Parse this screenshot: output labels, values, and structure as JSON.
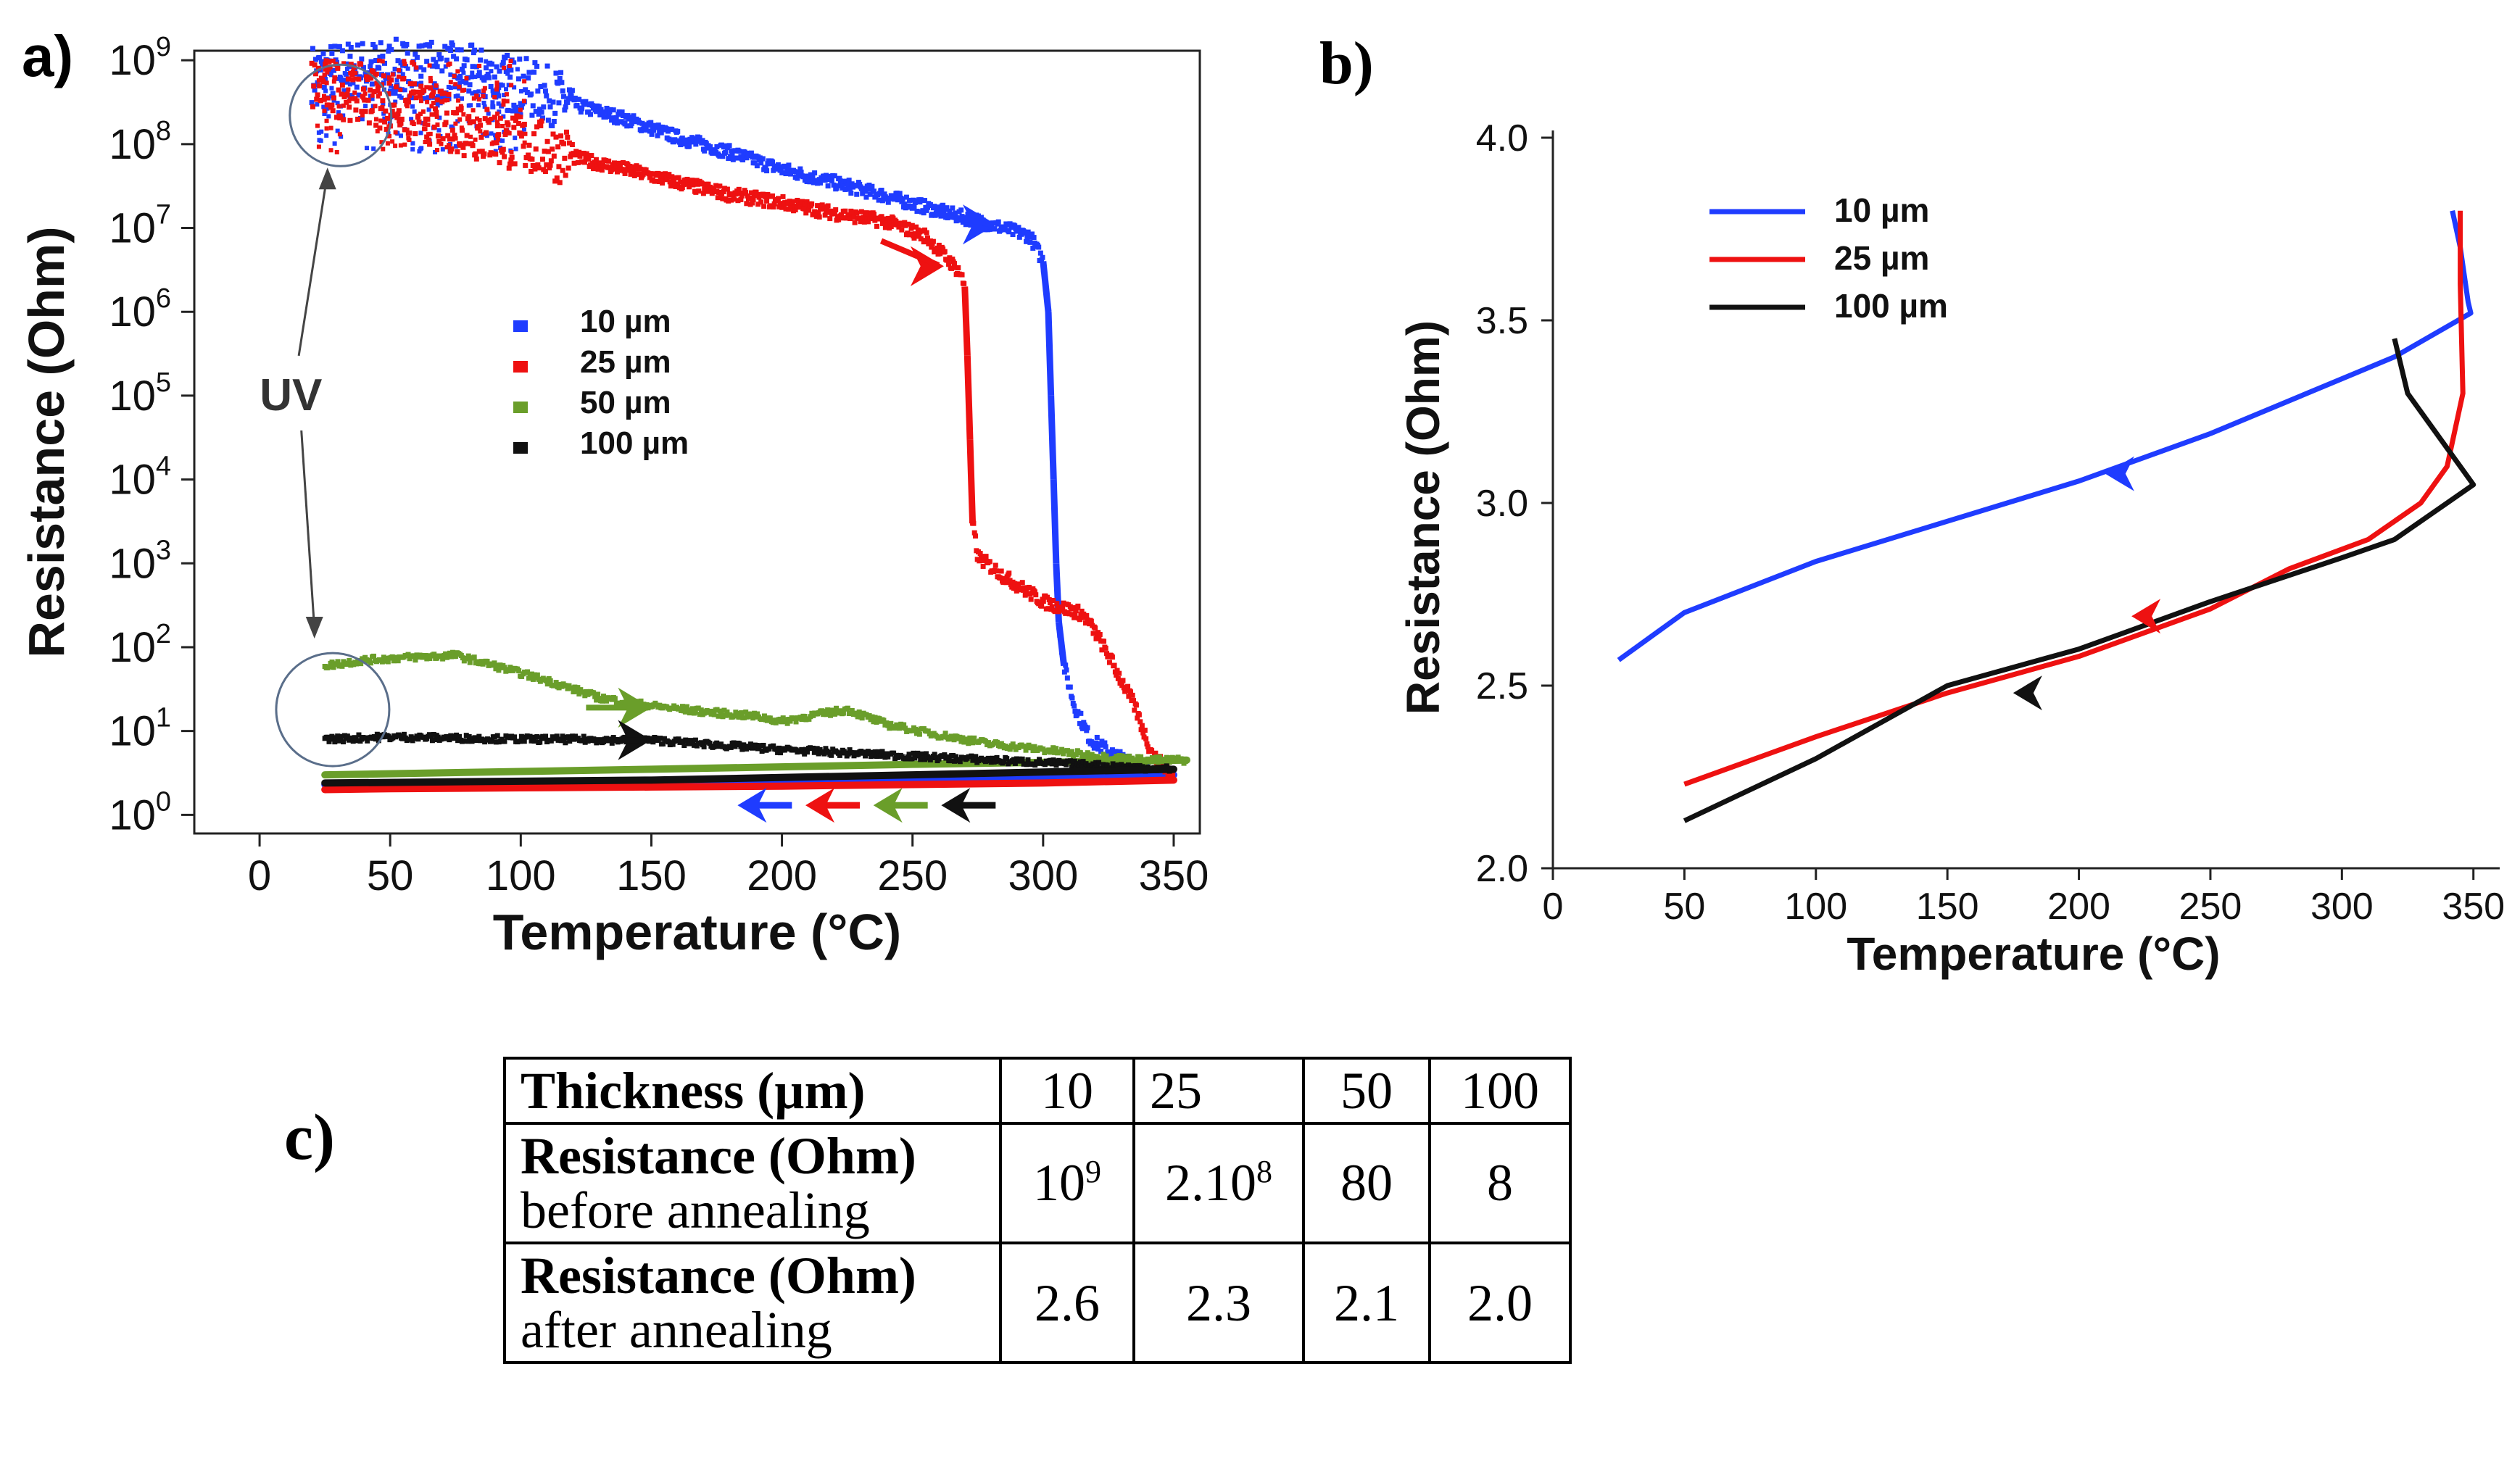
{
  "panel_labels": {
    "a": "a)",
    "b": "b)",
    "c": "c)"
  },
  "colors": {
    "blue": "#1f3cff",
    "red": "#ee1111",
    "green": "#6a9e2a",
    "black": "#111111",
    "circle": "#5a6e8a"
  },
  "chart_data": [
    {
      "panel": "a",
      "type": "scatter",
      "yscale": "log",
      "xlabel": "Temperature (°C)",
      "ylabel": "Resistance (Ohm)",
      "xlim": [
        -25,
        360
      ],
      "ylim": [
        0.6,
        1300000000.0
      ],
      "xticks": [
        0,
        50,
        100,
        150,
        200,
        250,
        300,
        350
      ],
      "yticks": [
        {
          "value": 1,
          "base": "10",
          "exp": "0"
        },
        {
          "value": 10,
          "base": "10",
          "exp": "1"
        },
        {
          "value": 100,
          "base": "10",
          "exp": "2"
        },
        {
          "value": 1000,
          "base": "10",
          "exp": "3"
        },
        {
          "value": 10000,
          "base": "10",
          "exp": "4"
        },
        {
          "value": 100000,
          "base": "10",
          "exp": "5"
        },
        {
          "value": 1000000,
          "base": "10",
          "exp": "6"
        },
        {
          "value": 10000000,
          "base": "10",
          "exp": "7"
        },
        {
          "value": 100000000,
          "base": "10",
          "exp": "8"
        },
        {
          "value": 1000000000,
          "base": "10",
          "exp": "9"
        }
      ],
      "annotation": "UV",
      "legend_position": "center",
      "series": [
        {
          "name": "10 µm",
          "heating": [
            [
              20,
              700000000.0
            ],
            [
              40,
              800000000.0
            ],
            [
              60,
              800000000.0
            ],
            [
              80,
              700000000.0
            ],
            [
              100,
              500000000.0
            ],
            [
              120,
              300000000.0
            ],
            [
              140,
              200000000.0
            ],
            [
              160,
              120000000.0
            ],
            [
              180,
              80000000.0
            ],
            [
              200,
              50000000.0
            ],
            [
              220,
              35000000.0
            ],
            [
              240,
              24000000.0
            ],
            [
              260,
              16000000.0
            ],
            [
              280,
              11000000.0
            ],
            [
              295,
              8000000.0
            ],
            [
              300,
              4000000.0
            ],
            [
              302,
              1000000.0
            ],
            [
              303,
              100000.0
            ],
            [
              304,
              10000.0
            ],
            [
              305,
              1000.0
            ],
            [
              306,
              200
            ],
            [
              308,
              60
            ],
            [
              312,
              20
            ],
            [
              318,
              8
            ],
            [
              328,
              5
            ],
            [
              340,
              3.5
            ],
            [
              350,
              3
            ]
          ],
          "cooling": [
            [
              350,
              3
            ],
            [
              300,
              2.8
            ],
            [
              250,
              2.7
            ],
            [
              200,
              2.6
            ],
            [
              150,
              2.5
            ],
            [
              100,
              2.4
            ],
            [
              50,
              2.35
            ],
            [
              25,
              2.3
            ]
          ]
        },
        {
          "name": "25 µm",
          "heating": [
            [
              20,
              500000000.0
            ],
            [
              40,
              400000000.0
            ],
            [
              60,
              250000000.0
            ],
            [
              80,
              150000000.0
            ],
            [
              100,
              100000000.0
            ],
            [
              120,
              70000000.0
            ],
            [
              140,
              50000000.0
            ],
            [
              160,
              35000000.0
            ],
            [
              180,
              25000000.0
            ],
            [
              200,
              20000000.0
            ],
            [
              220,
              15000000.0
            ],
            [
              240,
              12000000.0
            ],
            [
              255,
              8000000.0
            ],
            [
              268,
              3000000.0
            ],
            [
              270,
              2000000.0
            ],
            [
              271,
              300000.0
            ],
            [
              272,
              30000.0
            ],
            [
              273,
              3000.0
            ],
            [
              275,
              1200
            ],
            [
              285,
              700
            ],
            [
              300,
              350
            ],
            [
              315,
              250
            ],
            [
              320,
              150
            ],
            [
              325,
              80
            ],
            [
              335,
              20
            ],
            [
              342,
              5
            ],
            [
              350,
              3
            ]
          ],
          "cooling": [
            [
              350,
              2.6
            ],
            [
              300,
              2.4
            ],
            [
              250,
              2.3
            ],
            [
              200,
              2.2
            ],
            [
              150,
              2.15
            ],
            [
              100,
              2.1
            ],
            [
              50,
              2.05
            ],
            [
              25,
              2
            ]
          ]
        },
        {
          "name": "50 µm",
          "heating": [
            [
              25,
              60
            ],
            [
              40,
              70
            ],
            [
              55,
              75
            ],
            [
              75,
              80
            ],
            [
              90,
              60
            ],
            [
              110,
              40
            ],
            [
              130,
              25
            ],
            [
              150,
              20
            ],
            [
              170,
              17
            ],
            [
              190,
              15
            ],
            [
              200,
              13
            ],
            [
              210,
              15
            ],
            [
              225,
              18
            ],
            [
              240,
              12
            ],
            [
              260,
              9
            ],
            [
              280,
              7
            ],
            [
              300,
              6
            ],
            [
              320,
              5
            ],
            [
              340,
              4.5
            ],
            [
              355,
              4.5
            ]
          ],
          "cooling": [
            [
              355,
              4.5
            ],
            [
              250,
              4
            ],
            [
              150,
              3.5
            ],
            [
              25,
              3
            ]
          ]
        },
        {
          "name": "100 µm",
          "heating": [
            [
              25,
              8
            ],
            [
              50,
              8.5
            ],
            [
              100,
              8
            ],
            [
              150,
              7.8
            ],
            [
              200,
              6
            ],
            [
              250,
              5
            ],
            [
              300,
              4.2
            ],
            [
              350,
              3.5
            ]
          ],
          "cooling": [
            [
              350,
              3.5
            ],
            [
              250,
              3
            ],
            [
              150,
              2.6
            ],
            [
              25,
              2.4
            ]
          ]
        }
      ],
      "direction_arrows": [
        "blue",
        "red",
        "green",
        "black"
      ]
    },
    {
      "panel": "b",
      "type": "line",
      "xlabel": "Temperature (°C)",
      "ylabel": "Resistance (Ohm)",
      "xlim": [
        0,
        360
      ],
      "ylim": [
        2.0,
        4.0
      ],
      "xticks": [
        0,
        50,
        100,
        150,
        200,
        250,
        300,
        350
      ],
      "yticks": [
        "2.0",
        "2.5",
        "3.0",
        "3.5",
        "4.0"
      ],
      "legend_position": "top-left",
      "series": [
        {
          "name": "10 µm",
          "x": [
            342,
            345,
            348,
            349,
            320,
            250,
            200,
            150,
            100,
            50,
            25
          ],
          "y": [
            3.8,
            3.7,
            3.55,
            3.52,
            3.4,
            3.19,
            3.06,
            2.95,
            2.84,
            2.7,
            2.57
          ]
        },
        {
          "name": "25 µm",
          "x": [
            345,
            345,
            346,
            340,
            330,
            310,
            280,
            250,
            200,
            150,
            100,
            50
          ],
          "y": [
            3.8,
            3.6,
            3.3,
            3.1,
            3.0,
            2.9,
            2.82,
            2.71,
            2.58,
            2.48,
            2.36,
            2.23
          ]
        },
        {
          "name": "100 µm",
          "x": [
            320,
            325,
            335,
            345,
            350,
            340,
            320,
            300,
            250,
            200,
            150,
            100,
            50
          ],
          "y": [
            3.45,
            3.3,
            3.2,
            3.1,
            3.05,
            3.0,
            2.9,
            2.85,
            2.73,
            2.6,
            2.5,
            2.3,
            2.13
          ]
        }
      ],
      "arrows": [
        {
          "series": "10 µm",
          "x": 210,
          "y": 3.08
        },
        {
          "series": "25 µm",
          "x": 220,
          "y": 2.69
        },
        {
          "series": "100 µm",
          "x": 175,
          "y": 2.48
        }
      ]
    },
    {
      "panel": "c",
      "type": "table",
      "columns": [
        "Thickness (µm)",
        "10",
        "25",
        "50",
        "100"
      ],
      "rows": [
        {
          "label_bold": "Resistance (Ohm)",
          "label_sub": "before annealing",
          "values": [
            {
              "base": "10",
              "sup": "9"
            },
            {
              "base": "2.10",
              "sup": "8"
            },
            {
              "base": "80",
              "sup": ""
            },
            {
              "base": "8",
              "sup": ""
            }
          ]
        },
        {
          "label_bold": "Resistance (Ohm)",
          "label_sub": "after annealing",
          "values": [
            {
              "base": "2.6",
              "sup": ""
            },
            {
              "base": "2.3",
              "sup": ""
            },
            {
              "base": "2.1",
              "sup": ""
            },
            {
              "base": "2.0",
              "sup": ""
            }
          ]
        }
      ]
    }
  ]
}
